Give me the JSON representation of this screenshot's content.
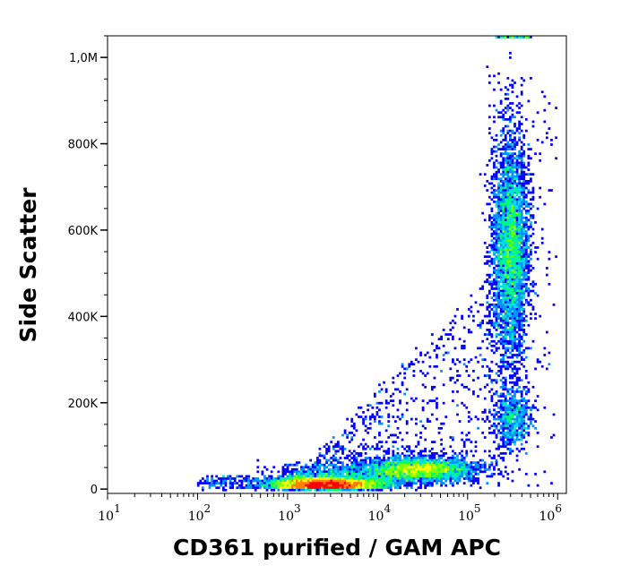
{
  "chart_data": {
    "type": "heatmap",
    "subtype": "flow-cytometry density dot plot",
    "xlabel": "CD361 purified / GAM APC",
    "ylabel": "Side Scatter",
    "x_scale": "log",
    "xlim": [
      10,
      1250000
    ],
    "ylim": [
      -10000,
      1050000
    ],
    "x_ticks": [
      {
        "value": 10,
        "base": "10",
        "exp": "1"
      },
      {
        "value": 100,
        "base": "10",
        "exp": "2"
      },
      {
        "value": 1000,
        "base": "10",
        "exp": "3"
      },
      {
        "value": 10000,
        "base": "10",
        "exp": "4"
      },
      {
        "value": 100000,
        "base": "10",
        "exp": "5"
      },
      {
        "value": 1000000,
        "base": "10",
        "exp": "6"
      }
    ],
    "y_ticks": [
      {
        "value": 0,
        "label": "0"
      },
      {
        "value": 200000,
        "label": "200K"
      },
      {
        "value": 400000,
        "label": "400K"
      },
      {
        "value": 600000,
        "label": "600K"
      },
      {
        "value": 800000,
        "label": "800K"
      },
      {
        "value": 1000000,
        "label": "1,0M"
      }
    ],
    "y_minor_step": 50000,
    "grid": false,
    "legend": "none",
    "colormap": [
      "#0000ff",
      "#0090ff",
      "#00e0e0",
      "#00ff60",
      "#80ff00",
      "#ffff00",
      "#ff8000",
      "#ff0000"
    ],
    "populations": [
      {
        "x_center": 2800,
        "x_sd_decades": 0.3,
        "y_center": 12000,
        "y_sd": 10000,
        "relative_events": 6000,
        "peak_color": "red"
      },
      {
        "x_center": 28000,
        "x_sd_decades": 0.32,
        "y_center": 45000,
        "y_sd": 14000,
        "relative_events": 3200,
        "peak_color": "green"
      },
      {
        "x_center": 300000,
        "x_sd_decades": 0.1,
        "y_center": 560000,
        "y_sd": 130000,
        "relative_events": 4200,
        "peak_color": "cyan"
      },
      {
        "x_center": 320000,
        "x_sd_decades": 0.1,
        "y_center": 165000,
        "y_sd": 35000,
        "relative_events": 700,
        "peak_color": "cyan"
      }
    ]
  }
}
